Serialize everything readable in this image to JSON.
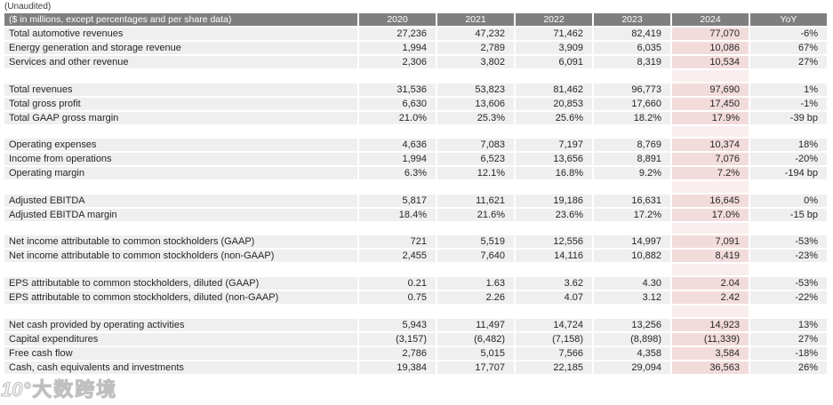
{
  "page": {
    "unaudited_label": "(Unaudited)"
  },
  "watermark": {
    "logo": "10°",
    "text": "大数跨境"
  },
  "colors": {
    "header_bg": "#7f7f7f",
    "row_bg": "#efefef",
    "highlight_2024": "#f2dcdb",
    "highlight_2024_spacer": "#f9eeed",
    "text": "#262626"
  },
  "table": {
    "header": {
      "label": "($ in millions, except percentages and per share data)",
      "columns": [
        "2020",
        "2021",
        "2022",
        "2023",
        "2024",
        "YoY"
      ]
    },
    "highlight_column": "2024",
    "sections": [
      {
        "rows": [
          {
            "label": "Total automotive revenues",
            "values": [
              "27,236",
              "47,232",
              "71,462",
              "82,419",
              "77,070",
              "-6%"
            ]
          },
          {
            "label": "Energy generation and storage revenue",
            "values": [
              "1,994",
              "2,789",
              "3,909",
              "6,035",
              "10,086",
              "67%"
            ]
          },
          {
            "label": "Services and other revenue",
            "values": [
              "2,306",
              "3,802",
              "6,091",
              "8,319",
              "10,534",
              "27%"
            ]
          }
        ]
      },
      {
        "rows": [
          {
            "label": "Total revenues",
            "values": [
              "31,536",
              "53,823",
              "81,462",
              "96,773",
              "97,690",
              "1%"
            ]
          },
          {
            "label": "Total gross profit",
            "values": [
              "6,630",
              "13,606",
              "20,853",
              "17,660",
              "17,450",
              "-1%"
            ]
          },
          {
            "label": "Total GAAP gross margin",
            "values": [
              "21.0%",
              "25.3%",
              "25.6%",
              "18.2%",
              "17.9%",
              "-39 bp"
            ]
          }
        ]
      },
      {
        "rows": [
          {
            "label": "Operating expenses",
            "values": [
              "4,636",
              "7,083",
              "7,197",
              "8,769",
              "10,374",
              "18%"
            ]
          },
          {
            "label": "Income from operations",
            "values": [
              "1,994",
              "6,523",
              "13,656",
              "8,891",
              "7,076",
              "-20%"
            ]
          },
          {
            "label": "Operating margin",
            "values": [
              "6.3%",
              "12.1%",
              "16.8%",
              "9.2%",
              "7.2%",
              "-194 bp"
            ]
          }
        ]
      },
      {
        "rows": [
          {
            "label": "Adjusted EBITDA",
            "values": [
              "5,817",
              "11,621",
              "19,186",
              "16,631",
              "16,645",
              "0%"
            ]
          },
          {
            "label": "Adjusted EBITDA margin",
            "values": [
              "18.4%",
              "21.6%",
              "23.6%",
              "17.2%",
              "17.0%",
              "-15 bp"
            ]
          }
        ]
      },
      {
        "rows": [
          {
            "label": "Net income attributable to common stockholders (GAAP)",
            "values": [
              "721",
              "5,519",
              "12,556",
              "14,997",
              "7,091",
              "-53%"
            ]
          },
          {
            "label": "Net income attributable to common stockholders (non-GAAP)",
            "values": [
              "2,455",
              "7,640",
              "14,116",
              "10,882",
              "8,419",
              "-23%"
            ]
          }
        ]
      },
      {
        "rows": [
          {
            "label": "EPS attributable to common stockholders, diluted (GAAP)",
            "values": [
              "0.21",
              "1.63",
              "3.62",
              "4.30",
              "2.04",
              "-53%"
            ]
          },
          {
            "label": "EPS attributable to common stockholders, diluted (non-GAAP)",
            "values": [
              "0.75",
              "2.26",
              "4.07",
              "3.12",
              "2.42",
              "-22%"
            ]
          }
        ]
      },
      {
        "rows": [
          {
            "label": "Net cash provided by operating activities",
            "values": [
              "5,943",
              "11,497",
              "14,724",
              "13,256",
              "14,923",
              "13%"
            ]
          },
          {
            "label": "Capital expenditures",
            "values": [
              "(3,157)",
              "(6,482)",
              "(7,158)",
              "(8,898)",
              "(11,339)",
              "27%"
            ]
          },
          {
            "label": "Free cash flow",
            "values": [
              "2,786",
              "5,015",
              "7,566",
              "4,358",
              "3,584",
              "-18%"
            ]
          },
          {
            "label": "Cash, cash equivalents and investments",
            "values": [
              "19,384",
              "17,707",
              "22,185",
              "29,094",
              "36,563",
              "26%"
            ]
          }
        ]
      }
    ]
  }
}
